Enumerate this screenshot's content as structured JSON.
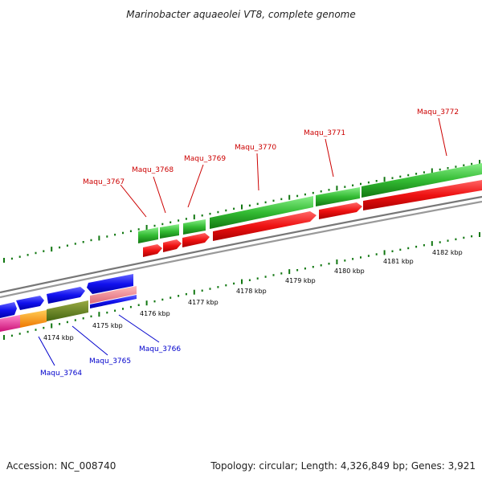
{
  "title": "Marinobacter aquaeolei VT8, complete genome",
  "footer": {
    "accession": "Accession: NC_008740",
    "summary": "Topology: circular; Length: 4,326,849 bp; Genes: 3,921"
  },
  "colors": {
    "backbone": "#888888",
    "tick": "#117711",
    "forward_gene": "#33cc33",
    "reverse_gene": "#ee1111",
    "blue_gene": "#1111ee",
    "pink_gene": "#ee3399",
    "orange_gene": "#ff9911",
    "olive_gene": "#668822",
    "label_red": "#cc0000",
    "label_blue": "#0000cc"
  },
  "ruler": {
    "unit": "kbp",
    "ticks": [
      {
        "kbp": 4174,
        "label": "4174 kbp"
      },
      {
        "kbp": 4175,
        "label": "4175 kbp"
      },
      {
        "kbp": 4176,
        "label": "4176 kbp"
      },
      {
        "kbp": 4177,
        "label": "4177 kbp"
      },
      {
        "kbp": 4178,
        "label": "4178 kbp"
      },
      {
        "kbp": 4179,
        "label": "4179 kbp"
      },
      {
        "kbp": 4180,
        "label": "4180 kbp"
      },
      {
        "kbp": 4181,
        "label": "4181 kbp"
      },
      {
        "kbp": 4182,
        "label": "4182 kbp"
      }
    ]
  },
  "gene_labels": [
    {
      "name": "Maqu_3764",
      "color": "#0000cc"
    },
    {
      "name": "Maqu_3765",
      "color": "#0000cc"
    },
    {
      "name": "Maqu_3766",
      "color": "#0000cc"
    },
    {
      "name": "Maqu_3767",
      "color": "#cc0000"
    },
    {
      "name": "Maqu_3768",
      "color": "#cc0000"
    },
    {
      "name": "Maqu_3769",
      "color": "#cc0000"
    },
    {
      "name": "Maqu_3770",
      "color": "#cc0000"
    },
    {
      "name": "Maqu_3771",
      "color": "#cc0000"
    },
    {
      "name": "Maqu_3772",
      "color": "#cc0000"
    }
  ]
}
